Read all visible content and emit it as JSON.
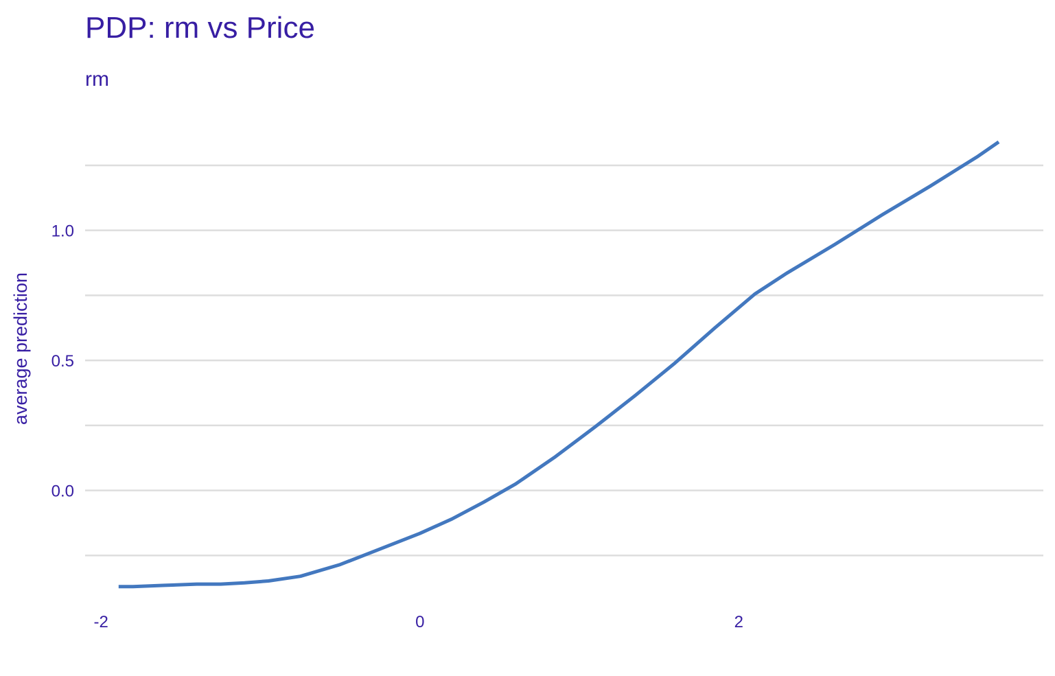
{
  "colors": {
    "text": "#371ea3",
    "line": "#4378bf",
    "grid": "#dddddd",
    "background": "#ffffff"
  },
  "chart_data": {
    "type": "line",
    "title": "PDP: rm vs Price",
    "subtitle": "rm",
    "xlabel": "",
    "ylabel": "average prediction",
    "xlim": [
      -2.1,
      3.91
    ],
    "ylim": [
      -0.41,
      1.49
    ],
    "grid": true,
    "x_ticks": [
      {
        "value": -2,
        "label": "-2"
      },
      {
        "value": 0,
        "label": "0"
      },
      {
        "value": 2,
        "label": "2"
      }
    ],
    "y_ticks": [
      {
        "value": 0.0,
        "label": "0.0"
      },
      {
        "value": 0.5,
        "label": "0.5"
      },
      {
        "value": 1.0,
        "label": "1.0"
      }
    ],
    "y_minor_grid": [
      -0.25,
      0.25,
      0.75,
      1.25
    ],
    "series": [
      {
        "x": [
          -1.89,
          -1.8,
          -1.6,
          -1.4,
          -1.25,
          -1.1,
          -0.95,
          -0.75,
          -0.5,
          -0.25,
          0.0,
          0.2,
          0.4,
          0.6,
          0.85,
          1.1,
          1.35,
          1.6,
          1.85,
          2.1,
          2.3,
          2.6,
          2.9,
          3.2,
          3.5,
          3.63
        ],
        "y": [
          -0.37,
          -0.37,
          -0.365,
          -0.36,
          -0.36,
          -0.355,
          -0.348,
          -0.33,
          -0.285,
          -0.225,
          -0.165,
          -0.11,
          -0.045,
          0.025,
          0.13,
          0.245,
          0.365,
          0.49,
          0.625,
          0.755,
          0.835,
          0.945,
          1.06,
          1.17,
          1.285,
          1.34
        ]
      }
    ]
  }
}
